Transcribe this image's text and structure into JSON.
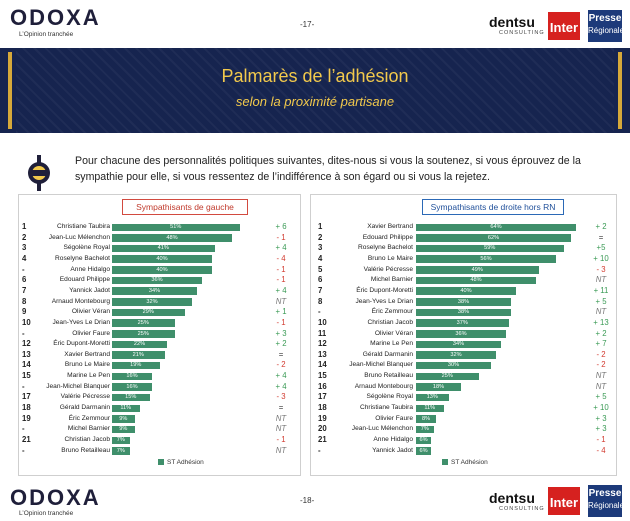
{
  "header": {
    "logo": "ODOXA",
    "tagline": "L’Opinion tranchée",
    "page_top": "-17-",
    "page_bottom": "-18-",
    "partner1": "dentsu",
    "partner1_sub": "CONSULTING",
    "partner2": "Inter",
    "partner3": "Presse",
    "partner3_sub": "Régionale"
  },
  "title": "Palmarès de l’adhésion",
  "subtitle": "selon la proximité partisane",
  "question": "Pour chacune des personnalités politiques suivantes, dites-nous si vous la soutenez, si vous éprouvez de la sympathie pour elle, si vous ressentez de l’indifférence à son égard ou si vous la rejetez.",
  "colors": {
    "bar": "#3f8f6b",
    "banner": "#16244f",
    "gold": "#f2c94c",
    "positive": "#3a9a55",
    "negative": "#d23b30"
  },
  "chart_data": [
    {
      "type": "bar",
      "orientation": "horizontal",
      "title": "Sympathisants de gauche",
      "legend": "ST Adhésion",
      "xlim": [
        0,
        100
      ],
      "rows": [
        {
          "rank": "1",
          "name": "Christiane Taubira",
          "value": 51,
          "label": "51%",
          "evolution": "+ 6"
        },
        {
          "rank": "2",
          "name": "Jean-Luc Mélenchon",
          "value": 48,
          "label": "48%",
          "evolution": "- 1"
        },
        {
          "rank": "3",
          "name": "Ségolène Royal",
          "value": 41,
          "label": "41%",
          "evolution": "+ 4"
        },
        {
          "rank": "4",
          "name": "Roselyne Bachelot",
          "value": 40,
          "label": "40%",
          "evolution": "- 4"
        },
        {
          "rank": "-",
          "name": "Anne Hidalgo",
          "value": 40,
          "label": "40%",
          "evolution": "- 1"
        },
        {
          "rank": "6",
          "name": "Edouard Philippe",
          "value": 36,
          "label": "36%",
          "evolution": "- 1"
        },
        {
          "rank": "7",
          "name": "Yannick Jadot",
          "value": 34,
          "label": "34%",
          "evolution": "+ 4"
        },
        {
          "rank": "8",
          "name": "Arnaud Montebourg",
          "value": 32,
          "label": "32%",
          "evolution": "NT"
        },
        {
          "rank": "9",
          "name": "Olivier Véran",
          "value": 29,
          "label": "29%",
          "evolution": "+ 1"
        },
        {
          "rank": "10",
          "name": "Jean-Yves Le Drian",
          "value": 25,
          "label": "25%",
          "evolution": "- 1"
        },
        {
          "rank": "-",
          "name": "Olivier Faure",
          "value": 25,
          "label": "25%",
          "evolution": "+ 3"
        },
        {
          "rank": "12",
          "name": "Éric Dupont-Moretti",
          "value": 22,
          "label": "22%",
          "evolution": "+ 2"
        },
        {
          "rank": "13",
          "name": "Xavier Bertrand",
          "value": 21,
          "label": "21%",
          "evolution": "="
        },
        {
          "rank": "14",
          "name": "Bruno Le Maire",
          "value": 19,
          "label": "19%",
          "evolution": "- 2"
        },
        {
          "rank": "15",
          "name": "Marine Le Pen",
          "value": 16,
          "label": "16%",
          "evolution": "+ 4"
        },
        {
          "rank": "-",
          "name": "Jean-Michel Blanquer",
          "value": 16,
          "label": "16%",
          "evolution": "+ 4"
        },
        {
          "rank": "17",
          "name": "Valérie Pécresse",
          "value": 15,
          "label": "15%",
          "evolution": "- 3"
        },
        {
          "rank": "18",
          "name": "Gérald Darmanin",
          "value": 11,
          "label": "11%",
          "evolution": "="
        },
        {
          "rank": "19",
          "name": "Éric Zemmour",
          "value": 9,
          "label": "9%",
          "evolution": "NT"
        },
        {
          "rank": "-",
          "name": "Michel Barnier",
          "value": 9,
          "label": "9%",
          "evolution": "NT"
        },
        {
          "rank": "21",
          "name": "Christian Jacob",
          "value": 7,
          "label": "7%",
          "evolution": "- 1"
        },
        {
          "rank": "-",
          "name": "Bruno Retailleau",
          "value": 7,
          "label": "7%",
          "evolution": "NT"
        }
      ]
    },
    {
      "type": "bar",
      "orientation": "horizontal",
      "title": "Sympathisants de droite hors RN",
      "legend": "ST Adhésion",
      "xlim": [
        0,
        100
      ],
      "rows": [
        {
          "rank": "1",
          "name": "Xavier Bertrand",
          "value": 64,
          "label": "64%",
          "evolution": "+ 2"
        },
        {
          "rank": "2",
          "name": "Edouard Philippe",
          "value": 62,
          "label": "62%",
          "evolution": "="
        },
        {
          "rank": "3",
          "name": "Roselyne Bachelot",
          "value": 59,
          "label": "59%",
          "evolution": "+5"
        },
        {
          "rank": "4",
          "name": "Bruno Le Maire",
          "value": 56,
          "label": "56%",
          "evolution": "+ 10"
        },
        {
          "rank": "5",
          "name": "Valérie Pécresse",
          "value": 49,
          "label": "49%",
          "evolution": "- 3"
        },
        {
          "rank": "6",
          "name": "Michel Barnier",
          "value": 48,
          "label": "48%",
          "evolution": "NT"
        },
        {
          "rank": "7",
          "name": "Éric Dupont-Moretti",
          "value": 40,
          "label": "40%",
          "evolution": "+ 11"
        },
        {
          "rank": "8",
          "name": "Jean-Yves Le Drian",
          "value": 38,
          "label": "38%",
          "evolution": "+ 5"
        },
        {
          "rank": "-",
          "name": "Éric Zemmour",
          "value": 38,
          "label": "38%",
          "evolution": "NT"
        },
        {
          "rank": "10",
          "name": "Christian Jacob",
          "value": 37,
          "label": "37%",
          "evolution": "+ 13"
        },
        {
          "rank": "11",
          "name": "Olivier Véran",
          "value": 36,
          "label": "36%",
          "evolution": "+ 2"
        },
        {
          "rank": "12",
          "name": "Marine Le Pen",
          "value": 34,
          "label": "34%",
          "evolution": "+ 7"
        },
        {
          "rank": "13",
          "name": "Gérald Darmanin",
          "value": 32,
          "label": "32%",
          "evolution": "- 2"
        },
        {
          "rank": "14",
          "name": "Jean-Michel Blanquer",
          "value": 30,
          "label": "30%",
          "evolution": "- 2"
        },
        {
          "rank": "15",
          "name": "Bruno Retailleau",
          "value": 25,
          "label": "25%",
          "evolution": "NT"
        },
        {
          "rank": "16",
          "name": "Arnaud Montebourg",
          "value": 18,
          "label": "18%",
          "evolution": "NT"
        },
        {
          "rank": "17",
          "name": "Ségolène Royal",
          "value": 13,
          "label": "13%",
          "evolution": "+ 5"
        },
        {
          "rank": "18",
          "name": "Christiane Taubira",
          "value": 11,
          "label": "11%",
          "evolution": "+ 10"
        },
        {
          "rank": "19",
          "name": "Olivier Faure",
          "value": 8,
          "label": "8%",
          "evolution": "+ 3"
        },
        {
          "rank": "20",
          "name": "Jean-Luc Mélenchon",
          "value": 7,
          "label": "7%",
          "evolution": "+ 3"
        },
        {
          "rank": "21",
          "name": "Anne Hidalgo",
          "value": 6,
          "label": "6%",
          "evolution": "- 1"
        },
        {
          "rank": "-",
          "name": "Yannick Jadot",
          "value": 6,
          "label": "6%",
          "evolution": "- 4"
        }
      ]
    }
  ]
}
